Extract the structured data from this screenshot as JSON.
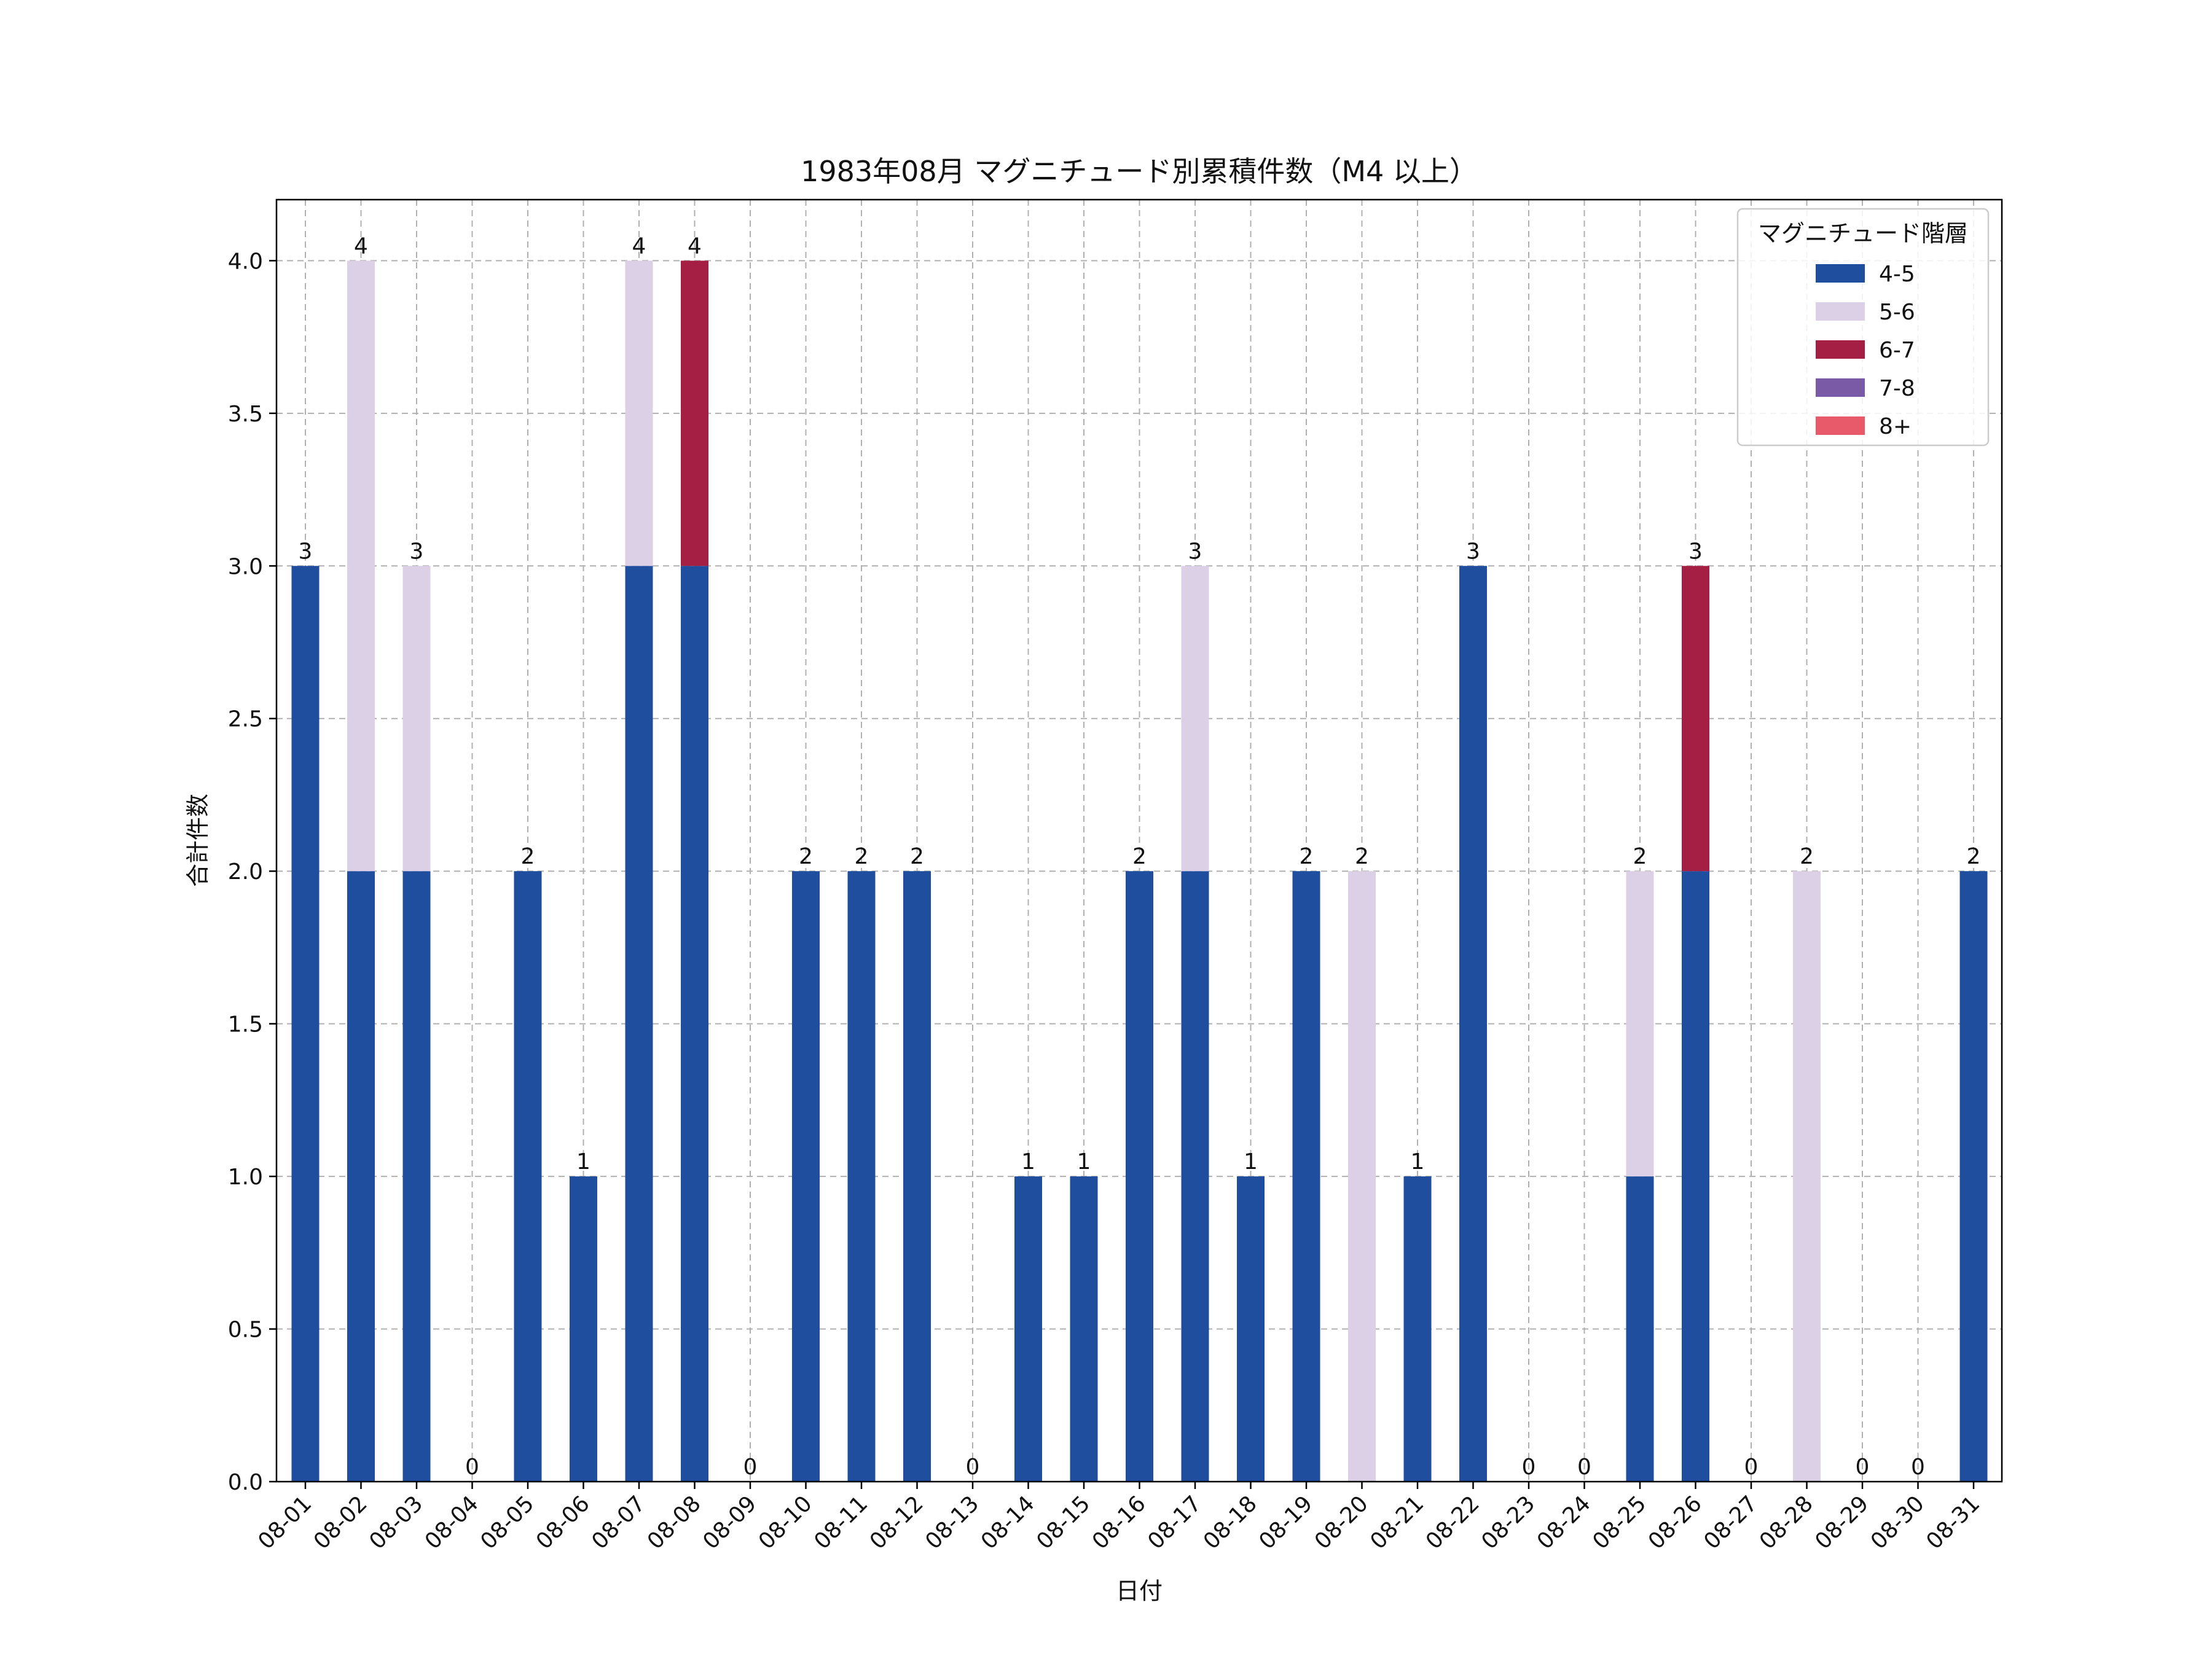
{
  "chart_data": {
    "type": "bar",
    "stacked": true,
    "title": "1983年08月 マグニチュード別累積件数（M4 以上）",
    "xlabel": "日付",
    "ylabel": "合計件数",
    "ylim": [
      0,
      4.2
    ],
    "yticks": [
      "0.0",
      "0.5",
      "1.0",
      "1.5",
      "2.0",
      "2.5",
      "3.0",
      "3.5",
      "4.0"
    ],
    "grid": true,
    "legend": {
      "title": "マグニチュード階層",
      "placement": "top-right"
    },
    "categories": [
      "08-01",
      "08-02",
      "08-03",
      "08-04",
      "08-05",
      "08-06",
      "08-07",
      "08-08",
      "08-09",
      "08-10",
      "08-11",
      "08-12",
      "08-13",
      "08-14",
      "08-15",
      "08-16",
      "08-17",
      "08-18",
      "08-19",
      "08-20",
      "08-21",
      "08-22",
      "08-23",
      "08-24",
      "08-25",
      "08-26",
      "08-27",
      "08-28",
      "08-29",
      "08-30",
      "08-31"
    ],
    "series": [
      {
        "name": "4-5",
        "color": "#1f4e9e",
        "values": [
          3,
          2,
          2,
          0,
          2,
          1,
          3,
          3,
          0,
          2,
          2,
          2,
          0,
          1,
          1,
          2,
          2,
          1,
          2,
          0,
          1,
          3,
          0,
          0,
          1,
          2,
          0,
          0,
          0,
          0,
          2
        ]
      },
      {
        "name": "5-6",
        "color": "#dcd0e6",
        "values": [
          0,
          2,
          1,
          0,
          0,
          0,
          1,
          0,
          0,
          0,
          0,
          0,
          0,
          0,
          0,
          0,
          1,
          0,
          0,
          2,
          0,
          0,
          0,
          0,
          1,
          0,
          0,
          2,
          0,
          0,
          0
        ]
      },
      {
        "name": "6-7",
        "color": "#a51f45",
        "values": [
          0,
          0,
          0,
          0,
          0,
          0,
          0,
          1,
          0,
          0,
          0,
          0,
          0,
          0,
          0,
          0,
          0,
          0,
          0,
          0,
          0,
          0,
          0,
          0,
          0,
          1,
          0,
          0,
          0,
          0,
          0
        ]
      },
      {
        "name": "7-8",
        "color": "#7a5aa6",
        "values": [
          0,
          0,
          0,
          0,
          0,
          0,
          0,
          0,
          0,
          0,
          0,
          0,
          0,
          0,
          0,
          0,
          0,
          0,
          0,
          0,
          0,
          0,
          0,
          0,
          0,
          0,
          0,
          0,
          0,
          0,
          0
        ]
      },
      {
        "name": "8+",
        "color": "#e85a6a",
        "values": [
          0,
          0,
          0,
          0,
          0,
          0,
          0,
          0,
          0,
          0,
          0,
          0,
          0,
          0,
          0,
          0,
          0,
          0,
          0,
          0,
          0,
          0,
          0,
          0,
          0,
          0,
          0,
          0,
          0,
          0,
          0
        ]
      }
    ],
    "totals": [
      3,
      4,
      3,
      0,
      2,
      1,
      4,
      4,
      0,
      2,
      2,
      2,
      0,
      1,
      1,
      2,
      3,
      1,
      2,
      2,
      1,
      3,
      0,
      0,
      2,
      3,
      0,
      2,
      0,
      0,
      2
    ]
  }
}
